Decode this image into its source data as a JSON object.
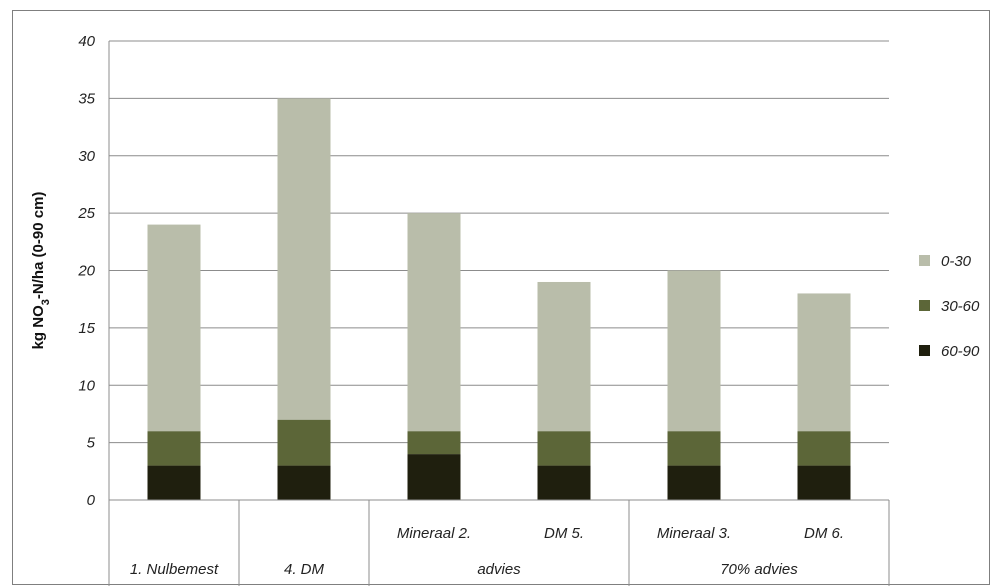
{
  "chart_data": {
    "type": "bar",
    "stacked": true,
    "categories": [
      "1. Nulbemest",
      "4. DM",
      "Mineraal 2.",
      "DM 5.",
      "Mineraal 3.",
      "DM 6."
    ],
    "groups": [
      {
        "label": "1. Nulbemest",
        "members": [
          "1. Nulbemest"
        ]
      },
      {
        "label": "4. DM",
        "members": [
          "4. DM"
        ]
      },
      {
        "label": "advies",
        "members": [
          "Mineraal 2.",
          "DM 5."
        ]
      },
      {
        "label": "70% advies",
        "members": [
          "Mineraal 3.",
          "DM 6."
        ]
      }
    ],
    "series": [
      {
        "name": "60-90",
        "color": "#1f1f0e",
        "values": [
          3,
          3,
          4,
          3,
          3,
          3
        ]
      },
      {
        "name": "30-60",
        "color": "#5c6638",
        "values": [
          3,
          4,
          2,
          3,
          3,
          3
        ]
      },
      {
        "name": "0-30",
        "color": "#b9bdaa",
        "values": [
          18,
          28,
          19,
          13,
          14,
          12
        ]
      }
    ],
    "legend_order": [
      "0-30",
      "30-60",
      "60-90"
    ],
    "legend_position": "right",
    "ylabel_parts": {
      "pre": "kg NO",
      "sub": "3",
      "post": "-N/ha (0-90 cm)"
    },
    "ylim": [
      0,
      40
    ],
    "yticks": [
      0,
      5,
      10,
      15,
      20,
      25,
      30,
      35,
      40
    ],
    "grid": true
  }
}
